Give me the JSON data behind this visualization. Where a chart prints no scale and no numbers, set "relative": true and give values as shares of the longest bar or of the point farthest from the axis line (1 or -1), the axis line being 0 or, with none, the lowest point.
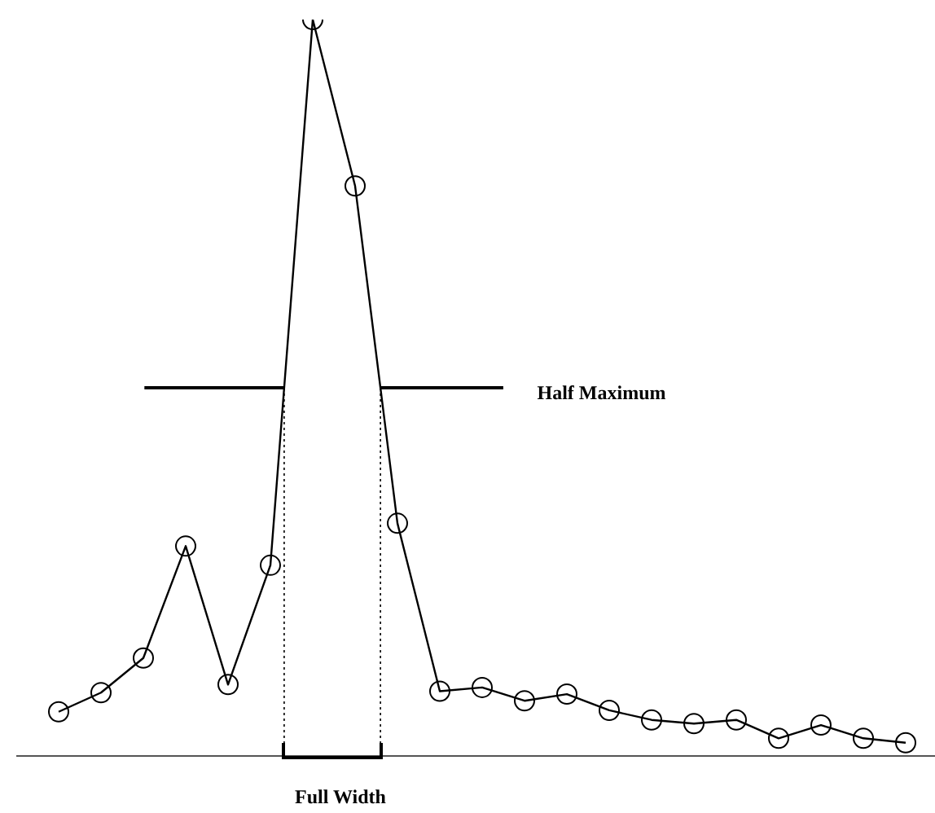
{
  "chart_data": {
    "type": "line",
    "relative": true,
    "categories": [
      null,
      null,
      null,
      null,
      null,
      null,
      null,
      null,
      null,
      null,
      null,
      null,
      null,
      null,
      null,
      null,
      null,
      null,
      null,
      null,
      null
    ],
    "values": [
      0.06,
      0.086,
      0.133,
      0.285,
      0.097,
      0.259,
      1,
      0.774,
      0.316,
      0.088,
      0.093,
      0.075,
      0.084,
      0.062,
      0.049,
      0.044,
      0.049,
      0.024,
      0.042,
      0.024,
      0.018
    ],
    "color": "#000000",
    "marker": "circle",
    "legend": false,
    "ref_lines": [
      {
        "axis": "y",
        "value": 0.5,
        "label": "Half Maximum"
      }
    ],
    "annotations": [
      "Full Width"
    ]
  }
}
